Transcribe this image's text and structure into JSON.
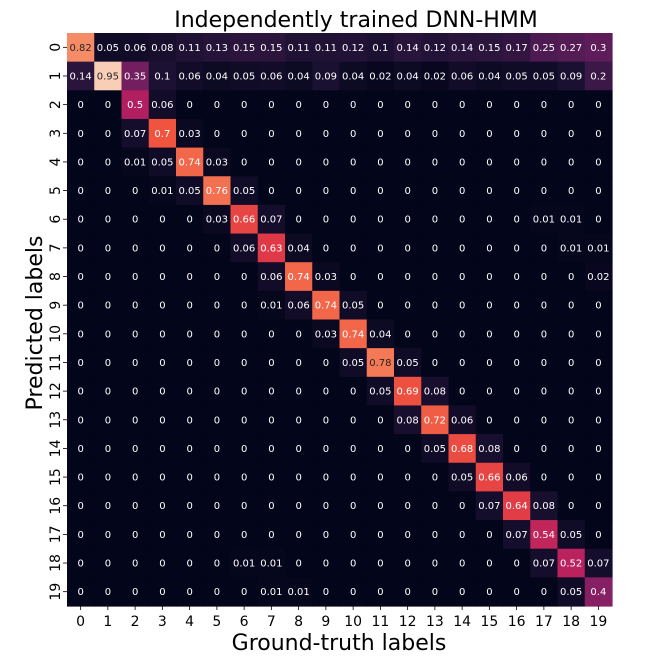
{
  "chart_data": {
    "type": "heatmap",
    "title": "Independently trained DNN-HMM",
    "xlabel": "Ground-truth labels",
    "ylabel": "Predicted labels",
    "x_categories": [
      "0",
      "1",
      "2",
      "3",
      "4",
      "5",
      "6",
      "7",
      "8",
      "9",
      "10",
      "11",
      "12",
      "13",
      "14",
      "15",
      "16",
      "17",
      "18",
      "19"
    ],
    "y_categories": [
      "0",
      "1",
      "2",
      "3",
      "4",
      "5",
      "6",
      "7",
      "8",
      "9",
      "10",
      "11",
      "12",
      "13",
      "14",
      "15",
      "16",
      "17",
      "18",
      "19"
    ],
    "value_range": [
      0,
      1
    ],
    "colormap": "rocket",
    "matrix": [
      [
        0.82,
        0.05,
        0.06,
        0.08,
        0.11,
        0.13,
        0.15,
        0.15,
        0.11,
        0.11,
        0.12,
        0.1,
        0.14,
        0.12,
        0.14,
        0.15,
        0.17,
        0.25,
        0.27,
        0.3
      ],
      [
        0.14,
        0.95,
        0.35,
        0.1,
        0.06,
        0.04,
        0.05,
        0.06,
        0.04,
        0.09,
        0.04,
        0.02,
        0.04,
        0.02,
        0.06,
        0.04,
        0.05,
        0.05,
        0.09,
        0.2
      ],
      [
        0,
        0,
        0.5,
        0.06,
        0,
        0,
        0,
        0,
        0,
        0,
        0,
        0,
        0,
        0,
        0,
        0,
        0,
        0,
        0,
        0
      ],
      [
        0,
        0,
        0.07,
        0.7,
        0.03,
        0,
        0,
        0,
        0,
        0,
        0,
        0,
        0,
        0,
        0,
        0,
        0,
        0,
        0,
        0
      ],
      [
        0,
        0,
        0.01,
        0.05,
        0.74,
        0.03,
        0,
        0,
        0,
        0,
        0,
        0,
        0,
        0,
        0,
        0,
        0,
        0,
        0,
        0
      ],
      [
        0,
        0,
        0,
        0.01,
        0.05,
        0.76,
        0.05,
        0,
        0,
        0,
        0,
        0,
        0,
        0,
        0,
        0,
        0,
        0,
        0,
        0
      ],
      [
        0,
        0,
        0,
        0,
        0,
        0.03,
        0.66,
        0.07,
        0,
        0,
        0,
        0,
        0,
        0,
        0,
        0,
        0,
        0.01,
        0.01,
        0
      ],
      [
        0,
        0,
        0,
        0,
        0,
        0,
        0.06,
        0.63,
        0.04,
        0,
        0,
        0,
        0,
        0,
        0,
        0,
        0,
        0,
        0.01,
        0.01
      ],
      [
        0,
        0,
        0,
        0,
        0,
        0,
        0,
        0.06,
        0.74,
        0.03,
        0,
        0,
        0,
        0,
        0,
        0,
        0,
        0,
        0,
        0.02
      ],
      [
        0,
        0,
        0,
        0,
        0,
        0,
        0,
        0.01,
        0.06,
        0.74,
        0.05,
        0,
        0,
        0,
        0,
        0,
        0,
        0,
        0,
        0
      ],
      [
        0,
        0,
        0,
        0,
        0,
        0,
        0,
        0,
        0,
        0.03,
        0.74,
        0.04,
        0,
        0,
        0,
        0,
        0,
        0,
        0,
        0
      ],
      [
        0,
        0,
        0,
        0,
        0,
        0,
        0,
        0,
        0,
        0,
        0.05,
        0.78,
        0.05,
        0,
        0,
        0,
        0,
        0,
        0,
        0
      ],
      [
        0,
        0,
        0,
        0,
        0,
        0,
        0,
        0,
        0,
        0,
        0,
        0.05,
        0.69,
        0.08,
        0,
        0,
        0,
        0,
        0,
        0
      ],
      [
        0,
        0,
        0,
        0,
        0,
        0,
        0,
        0,
        0,
        0,
        0,
        0,
        0.08,
        0.72,
        0.06,
        0,
        0,
        0,
        0,
        0
      ],
      [
        0,
        0,
        0,
        0,
        0,
        0,
        0,
        0,
        0,
        0,
        0,
        0,
        0,
        0.05,
        0.68,
        0.08,
        0,
        0,
        0,
        0
      ],
      [
        0,
        0,
        0,
        0,
        0,
        0,
        0,
        0,
        0,
        0,
        0,
        0,
        0,
        0,
        0.05,
        0.66,
        0.06,
        0,
        0,
        0
      ],
      [
        0,
        0,
        0,
        0,
        0,
        0,
        0,
        0,
        0,
        0,
        0,
        0,
        0,
        0,
        0,
        0.07,
        0.64,
        0.08,
        0,
        0
      ],
      [
        0,
        0,
        0,
        0,
        0,
        0,
        0,
        0,
        0,
        0,
        0,
        0,
        0,
        0,
        0,
        0,
        0.07,
        0.54,
        0.05,
        0
      ],
      [
        0,
        0,
        0,
        0,
        0,
        0,
        0.01,
        0.01,
        0,
        0,
        0,
        0,
        0,
        0,
        0,
        0,
        0,
        0.07,
        0.52,
        0.07
      ],
      [
        0,
        0,
        0,
        0,
        0,
        0,
        0,
        0.01,
        0.01,
        0,
        0,
        0,
        0,
        0,
        0,
        0,
        0,
        0,
        0.05,
        0.4
      ]
    ],
    "legend": "none",
    "grid": false
  }
}
